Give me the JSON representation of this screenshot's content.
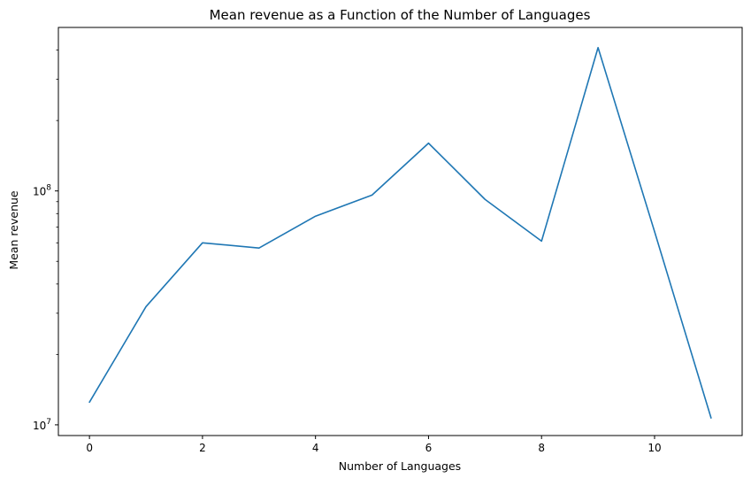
{
  "chart_data": {
    "type": "line",
    "title": "Mean revenue as a Function of the Number of Languages",
    "xlabel": "Number of Languages",
    "ylabel": "Mean revenue",
    "yscale": "log",
    "xlim": [
      -0.55,
      11.55
    ],
    "ylim": [
      9000000,
      500000000
    ],
    "x_ticks": [
      0,
      2,
      4,
      6,
      8,
      10
    ],
    "y_major_ticks": [
      {
        "value": 10000000,
        "base": "10",
        "exp": "7"
      },
      {
        "value": 100000000,
        "base": "10",
        "exp": "8"
      }
    ],
    "y_minor_ticks": [
      20000000,
      30000000,
      40000000,
      50000000,
      60000000,
      70000000,
      80000000,
      90000000,
      200000000,
      300000000,
      400000000
    ],
    "grid": false,
    "color": "#1f77b4",
    "series": [
      {
        "name": "Mean revenue",
        "x": [
          0,
          1,
          2,
          3,
          4,
          5,
          6,
          7,
          8,
          9,
          10,
          11
        ],
        "values": [
          12500000,
          32000000,
          60000000,
          57000000,
          78000000,
          96000000,
          160000000,
          92000000,
          61000000,
          410000000,
          67000000,
          10700000
        ]
      }
    ]
  }
}
